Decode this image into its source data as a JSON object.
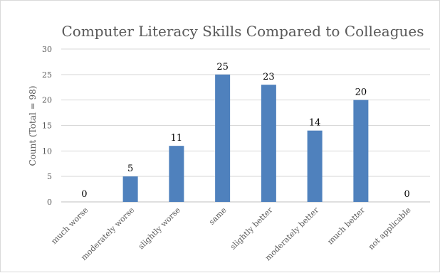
{
  "chart_data": {
    "type": "bar",
    "title": "Computer Literacy Skills Compared to Colleagues",
    "xlabel": "",
    "ylabel": "Count (Total = 98)",
    "categories": [
      "much worse",
      "moderately worse",
      "slightly worse",
      "same",
      "slightly better",
      "moderately better",
      "much better",
      "not applicable"
    ],
    "values": [
      0,
      5,
      11,
      25,
      23,
      14,
      20,
      0
    ],
    "ylim": [
      0,
      30
    ],
    "yticks": [
      0,
      5,
      10,
      15,
      20,
      25,
      30
    ],
    "grid": true,
    "legend": "none",
    "bar_color": "#4f81bd"
  }
}
